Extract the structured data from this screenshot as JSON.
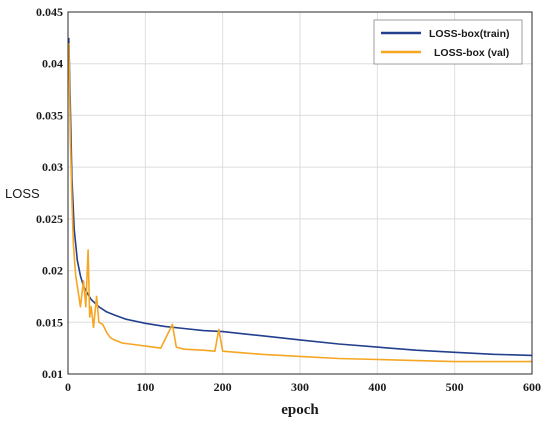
{
  "chart_data": {
    "type": "line",
    "xlabel": "epoch",
    "ylabel": "LOSS",
    "xlim": [
      0,
      600
    ],
    "ylim": [
      0.01,
      0.045
    ],
    "x_ticks": [
      "0",
      "100",
      "200",
      "300",
      "400",
      "500",
      "600"
    ],
    "y_ticks": [
      "0.01",
      "0.015",
      "0.02",
      "0.025",
      "0.03",
      "0.035",
      "0.04",
      "0.045"
    ],
    "grid": true,
    "legend_position": "top-right",
    "series": [
      {
        "name": "LOSS-box(train)",
        "color": "#23408e",
        "x": [
          1,
          3,
          5,
          8,
          12,
          16,
          20,
          25,
          30,
          40,
          50,
          60,
          75,
          100,
          125,
          150,
          175,
          200,
          225,
          250,
          275,
          300,
          350,
          400,
          450,
          500,
          550,
          600
        ],
        "y": [
          0.0425,
          0.036,
          0.029,
          0.024,
          0.021,
          0.0195,
          0.0185,
          0.0178,
          0.0172,
          0.0165,
          0.016,
          0.0157,
          0.0153,
          0.0149,
          0.0146,
          0.0144,
          0.0142,
          0.0141,
          0.0139,
          0.0137,
          0.0135,
          0.0133,
          0.0129,
          0.0126,
          0.0123,
          0.0121,
          0.0119,
          0.0118
        ]
      },
      {
        "name": "LOSS-box (val)",
        "color": "#f5a623",
        "x": [
          1,
          2,
          3,
          5,
          7,
          10,
          13,
          16,
          20,
          23,
          26,
          28,
          30,
          33,
          37,
          40,
          45,
          50,
          55,
          60,
          70,
          80,
          90,
          100,
          120,
          135,
          140,
          150,
          175,
          190,
          195,
          200,
          250,
          300,
          350,
          400,
          450,
          500,
          550,
          600
        ],
        "y": [
          0.042,
          0.038,
          0.033,
          0.027,
          0.0225,
          0.0195,
          0.018,
          0.0165,
          0.019,
          0.0165,
          0.022,
          0.0155,
          0.0165,
          0.0145,
          0.0175,
          0.015,
          0.0148,
          0.014,
          0.0135,
          0.0133,
          0.013,
          0.0129,
          0.0128,
          0.0127,
          0.0125,
          0.0148,
          0.0126,
          0.0124,
          0.0123,
          0.0122,
          0.0143,
          0.0122,
          0.0119,
          0.0117,
          0.0115,
          0.0114,
          0.0113,
          0.0112,
          0.0112,
          0.0112
        ]
      }
    ]
  }
}
